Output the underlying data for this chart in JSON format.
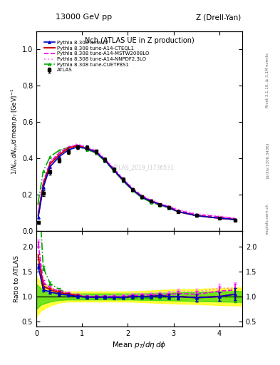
{
  "title_center": "Nch (ATLAS UE in Z production)",
  "title_left": "13000 GeV pp",
  "title_right": "Z (Drell-Yan)",
  "watermark": "ATLAS_2019_I1736531",
  "rivet_text": "Rivet 3.1.10, ≥ 3.1M events",
  "arxiv_text": "[arXiv:1306.3436]",
  "mcplots_text": "mcplots.cern.ch",
  "xlim": [
    0,
    4.5
  ],
  "ylim_main": [
    0,
    1.1
  ],
  "ylim_ratio": [
    0.4,
    2.3
  ],
  "atlas_x": [
    0.04,
    0.15,
    0.3,
    0.5,
    0.7,
    0.9,
    1.1,
    1.3,
    1.5,
    1.7,
    1.9,
    2.1,
    2.3,
    2.5,
    2.7,
    2.9,
    3.1,
    3.5,
    4.0,
    4.35
  ],
  "atlas_y": [
    0.048,
    0.21,
    0.325,
    0.39,
    0.435,
    0.462,
    0.46,
    0.44,
    0.395,
    0.34,
    0.285,
    0.23,
    0.19,
    0.165,
    0.145,
    0.13,
    0.108,
    0.088,
    0.072,
    0.062
  ],
  "atlas_yerr": [
    0.008,
    0.015,
    0.013,
    0.013,
    0.012,
    0.01,
    0.01,
    0.01,
    0.01,
    0.009,
    0.009,
    0.008,
    0.008,
    0.008,
    0.007,
    0.007,
    0.006,
    0.006,
    0.005,
    0.005
  ],
  "py_default_x": [
    0.04,
    0.15,
    0.3,
    0.5,
    0.7,
    0.9,
    1.1,
    1.3,
    1.5,
    1.7,
    1.9,
    2.1,
    2.3,
    2.5,
    2.7,
    2.9,
    3.1,
    3.5,
    4.0,
    4.35
  ],
  "py_default_y": [
    0.077,
    0.24,
    0.355,
    0.41,
    0.447,
    0.463,
    0.455,
    0.435,
    0.39,
    0.335,
    0.28,
    0.23,
    0.19,
    0.165,
    0.148,
    0.13,
    0.108,
    0.086,
    0.072,
    0.065
  ],
  "py_cteql1_x": [
    0.04,
    0.15,
    0.3,
    0.5,
    0.7,
    0.9,
    1.1,
    1.3,
    1.5,
    1.7,
    1.9,
    2.1,
    2.3,
    2.5,
    2.7,
    2.9,
    3.1,
    3.5,
    4.0,
    4.35
  ],
  "py_cteql1_y": [
    0.086,
    0.255,
    0.37,
    0.42,
    0.457,
    0.47,
    0.455,
    0.435,
    0.39,
    0.335,
    0.28,
    0.23,
    0.19,
    0.165,
    0.148,
    0.13,
    0.108,
    0.086,
    0.072,
    0.065
  ],
  "py_mstw_x": [
    0.04,
    0.15,
    0.3,
    0.5,
    0.7,
    0.9,
    1.1,
    1.3,
    1.5,
    1.7,
    1.9,
    2.1,
    2.3,
    2.5,
    2.7,
    2.9,
    3.1,
    3.5,
    4.0,
    4.35
  ],
  "py_mstw_y": [
    0.098,
    0.27,
    0.38,
    0.43,
    0.462,
    0.475,
    0.46,
    0.44,
    0.395,
    0.34,
    0.285,
    0.235,
    0.195,
    0.17,
    0.15,
    0.135,
    0.115,
    0.092,
    0.08,
    0.07
  ],
  "py_nnpdf_x": [
    0.04,
    0.15,
    0.3,
    0.5,
    0.7,
    0.9,
    1.1,
    1.3,
    1.5,
    1.7,
    1.9,
    2.1,
    2.3,
    2.5,
    2.7,
    2.9,
    3.1,
    3.5,
    4.0,
    4.35
  ],
  "py_nnpdf_y": [
    0.1,
    0.27,
    0.385,
    0.435,
    0.466,
    0.48,
    0.465,
    0.445,
    0.4,
    0.345,
    0.29,
    0.24,
    0.2,
    0.175,
    0.155,
    0.14,
    0.12,
    0.096,
    0.084,
    0.072
  ],
  "py_cuetp_x": [
    0.04,
    0.15,
    0.3,
    0.5,
    0.7,
    0.9,
    1.1,
    1.3,
    1.5,
    1.7,
    1.9,
    2.1,
    2.3,
    2.5,
    2.7,
    2.9,
    3.1,
    3.5,
    4.0,
    4.35
  ],
  "py_cuetp_y": [
    0.16,
    0.33,
    0.41,
    0.445,
    0.462,
    0.465,
    0.45,
    0.43,
    0.385,
    0.33,
    0.275,
    0.225,
    0.185,
    0.16,
    0.143,
    0.127,
    0.108,
    0.086,
    0.072,
    0.062
  ],
  "color_atlas": "#000000",
  "color_default": "#0000cc",
  "color_cteql1": "#cc0000",
  "color_mstw": "#ee00ee",
  "color_nnpdf": "#ff88ff",
  "color_cuetp": "#00aa00",
  "band_yellow": "#ffff00",
  "band_green": "#00cc00",
  "ratio_x": [
    0.04,
    0.15,
    0.3,
    0.5,
    0.7,
    0.9,
    1.1,
    1.3,
    1.5,
    1.7,
    1.9,
    2.1,
    2.3,
    2.5,
    2.7,
    2.9,
    3.1,
    3.5,
    4.0,
    4.35
  ],
  "ratio_default": [
    1.6,
    1.14,
    1.09,
    1.05,
    1.028,
    1.002,
    0.989,
    0.989,
    0.987,
    0.985,
    0.982,
    1.0,
    1.0,
    1.0,
    1.021,
    1.0,
    1.0,
    0.977,
    1.0,
    1.048
  ],
  "ratio_cteql1": [
    1.79,
    1.21,
    1.138,
    1.077,
    1.051,
    1.017,
    0.989,
    0.989,
    0.987,
    0.985,
    0.982,
    1.0,
    1.0,
    1.0,
    1.021,
    1.0,
    1.0,
    0.977,
    1.0,
    1.048
  ],
  "ratio_mstw": [
    2.04,
    1.286,
    1.169,
    1.103,
    1.062,
    1.028,
    1.0,
    1.0,
    1.0,
    1.0,
    1.0,
    1.022,
    1.026,
    1.03,
    1.034,
    1.038,
    1.063,
    1.045,
    1.111,
    1.129
  ],
  "ratio_nnpdf": [
    2.08,
    1.286,
    1.185,
    1.115,
    1.071,
    1.039,
    1.011,
    1.011,
    1.013,
    1.015,
    1.018,
    1.044,
    1.053,
    1.061,
    1.069,
    1.077,
    1.111,
    1.091,
    1.167,
    1.161
  ],
  "ratio_cuetp": [
    3.33,
    1.571,
    1.262,
    1.141,
    1.062,
    1.006,
    0.978,
    0.977,
    0.975,
    0.971,
    0.965,
    0.978,
    0.974,
    0.97,
    0.986,
    0.977,
    1.0,
    0.977,
    1.0,
    1.0
  ],
  "ratio_default_err": [
    0.05,
    0.04,
    0.035,
    0.03,
    0.025,
    0.022,
    0.022,
    0.022,
    0.022,
    0.022,
    0.022,
    0.022,
    0.025,
    0.028,
    0.03,
    0.04,
    0.05,
    0.07,
    0.09,
    0.12
  ],
  "ratio_cteql1_err": [
    0.05,
    0.04,
    0.035,
    0.03,
    0.025,
    0.022,
    0.022,
    0.022,
    0.022,
    0.022,
    0.022,
    0.022,
    0.025,
    0.028,
    0.03,
    0.04,
    0.05,
    0.07,
    0.09,
    0.12
  ],
  "ratio_mstw_err": [
    0.05,
    0.04,
    0.035,
    0.03,
    0.025,
    0.022,
    0.022,
    0.022,
    0.022,
    0.022,
    0.022,
    0.022,
    0.025,
    0.028,
    0.03,
    0.04,
    0.05,
    0.07,
    0.09,
    0.12
  ],
  "ratio_nnpdf_err": [
    0.05,
    0.04,
    0.035,
    0.03,
    0.025,
    0.022,
    0.022,
    0.022,
    0.022,
    0.022,
    0.022,
    0.022,
    0.025,
    0.028,
    0.03,
    0.04,
    0.05,
    0.07,
    0.09,
    0.12
  ],
  "ratio_cuetp_err": [
    0.05,
    0.04,
    0.035,
    0.03,
    0.025,
    0.022,
    0.022,
    0.022,
    0.022,
    0.022,
    0.022,
    0.022,
    0.025,
    0.028,
    0.03,
    0.04,
    0.05,
    0.07,
    0.09,
    0.12
  ],
  "band_yellow_x": [
    0.0,
    0.1,
    0.3,
    0.5,
    0.7,
    1.0,
    1.5,
    2.0,
    2.5,
    3.0,
    3.5,
    4.0,
    4.5
  ],
  "band_yellow_lo": [
    0.6,
    0.72,
    0.82,
    0.88,
    0.9,
    0.9,
    0.9,
    0.9,
    0.88,
    0.86,
    0.85,
    0.83,
    0.82
  ],
  "band_yellow_hi": [
    1.4,
    1.28,
    1.18,
    1.12,
    1.1,
    1.1,
    1.1,
    1.1,
    1.12,
    1.14,
    1.15,
    1.17,
    1.18
  ],
  "band_green_x": [
    0.0,
    0.1,
    0.3,
    0.5,
    0.7,
    1.0,
    1.5,
    2.0,
    2.5,
    3.0,
    3.5,
    4.0,
    4.5
  ],
  "band_green_lo": [
    0.75,
    0.84,
    0.9,
    0.93,
    0.94,
    0.94,
    0.94,
    0.94,
    0.93,
    0.92,
    0.91,
    0.9,
    0.89
  ],
  "band_green_hi": [
    1.25,
    1.16,
    1.1,
    1.07,
    1.06,
    1.06,
    1.06,
    1.06,
    1.07,
    1.08,
    1.09,
    1.1,
    1.11
  ],
  "yticks_main": [
    0.0,
    0.2,
    0.4,
    0.6,
    0.8,
    1.0
  ],
  "yticks_ratio": [
    0.5,
    1.0,
    1.5,
    2.0
  ],
  "xticks": [
    0,
    1,
    2,
    3,
    4
  ]
}
